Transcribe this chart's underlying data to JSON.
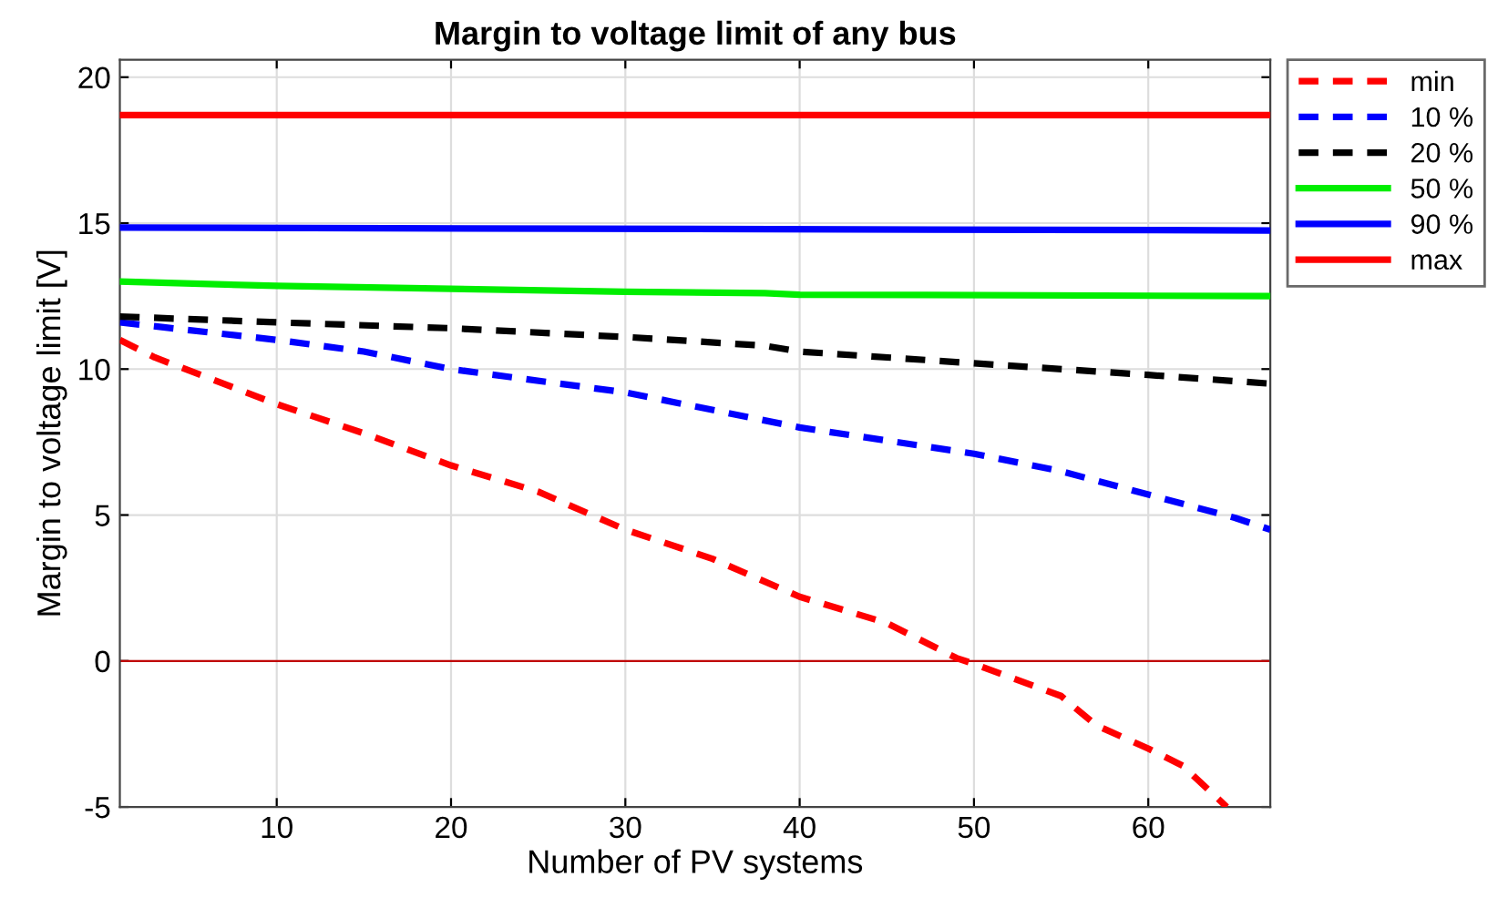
{
  "chart_data": {
    "type": "line",
    "title": "Margin to voltage limit of any bus",
    "xlabel": "Number of PV systems",
    "ylabel": "Margin to voltage limit [V]",
    "xlim": [
      1,
      67
    ],
    "ylim": [
      -5,
      20.6
    ],
    "xticks": [
      10,
      20,
      30,
      40,
      50,
      60
    ],
    "yticks": [
      -5,
      0,
      5,
      10,
      15,
      20
    ],
    "grid": true,
    "legend": "top right",
    "marker": "none",
    "ref_lines": [
      {
        "axis": "y",
        "value": 0,
        "color": "#c00000",
        "line_style": "solid"
      }
    ],
    "series": [
      {
        "name": "min",
        "color": "#ff0000",
        "line_style": "dashed",
        "x": [
          1,
          3,
          10,
          15,
          20,
          25,
          30,
          35,
          40,
          45,
          49,
          50,
          55,
          57,
          60,
          62,
          64.5
        ],
        "values": [
          11.0,
          10.4,
          8.8,
          7.8,
          6.7,
          5.8,
          4.5,
          3.5,
          2.2,
          1.3,
          0.1,
          -0.1,
          -1.2,
          -2.2,
          -3.0,
          -3.6,
          -5.0
        ]
      },
      {
        "name": "10 %",
        "color": "#0000ff",
        "line_style": "dashed",
        "x": [
          1,
          10,
          15,
          20,
          30,
          40,
          50,
          55,
          60,
          65,
          67
        ],
        "values": [
          11.6,
          11.0,
          10.6,
          10.0,
          9.2,
          8.0,
          7.1,
          6.5,
          5.7,
          4.9,
          4.5
        ]
      },
      {
        "name": "20 %",
        "color": "#000000",
        "line_style": "dashed",
        "x": [
          1,
          10,
          20,
          30,
          38,
          40,
          50,
          60,
          67
        ],
        "values": [
          11.8,
          11.6,
          11.4,
          11.1,
          10.8,
          10.6,
          10.2,
          9.8,
          9.5
        ]
      },
      {
        "name": "50 %",
        "color": "#00ee00",
        "line_style": "solid",
        "x": [
          1,
          10,
          20,
          30,
          38,
          40,
          67
        ],
        "values": [
          13.0,
          12.85,
          12.75,
          12.65,
          12.6,
          12.55,
          12.5
        ]
      },
      {
        "name": "90 %",
        "color": "#0000ff",
        "line_style": "solid",
        "x": [
          1,
          67
        ],
        "values": [
          14.85,
          14.75
        ]
      },
      {
        "name": "max",
        "color": "#ff0000",
        "line_style": "solid",
        "x": [
          1,
          67
        ],
        "values": [
          18.7,
          18.7
        ]
      }
    ]
  }
}
